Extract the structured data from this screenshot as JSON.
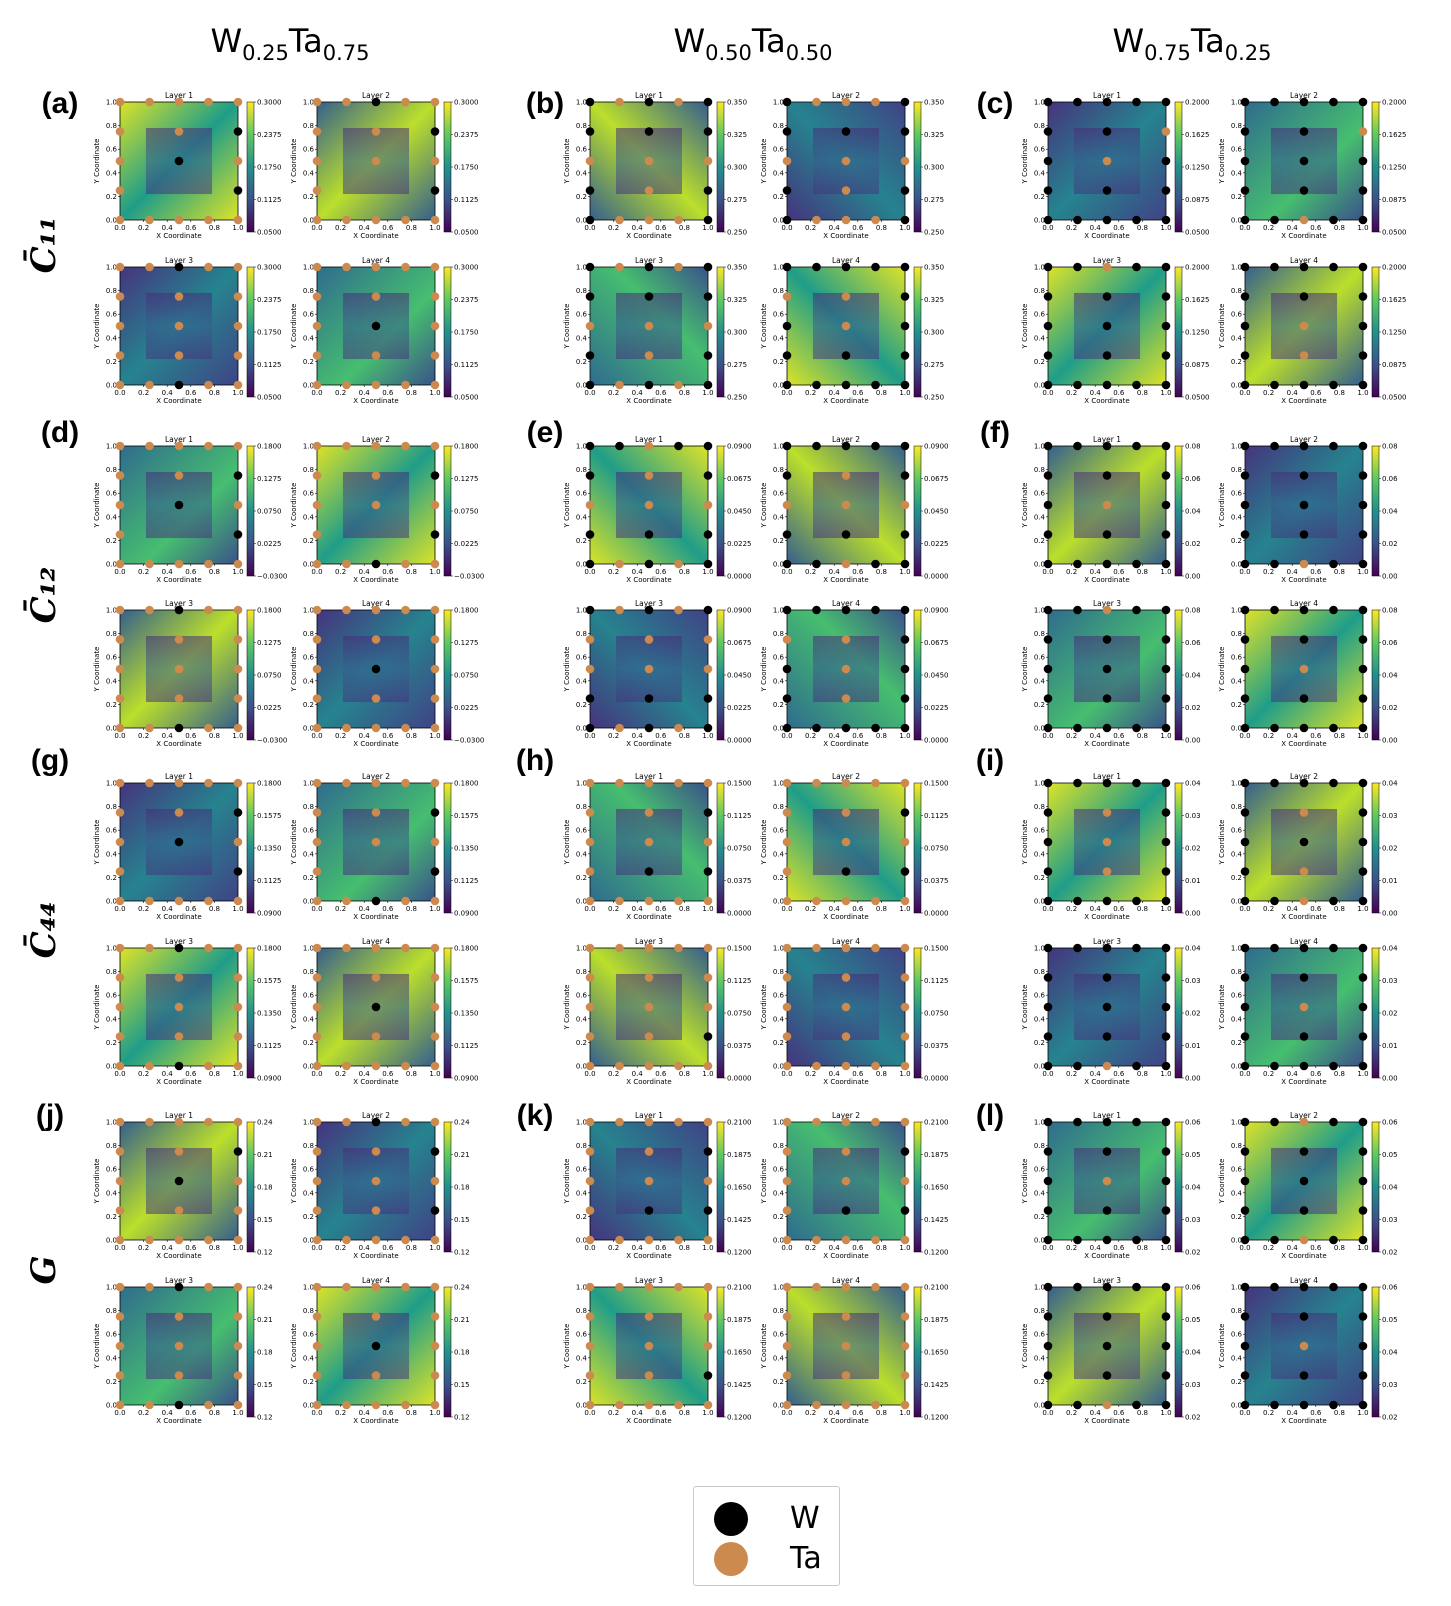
{
  "column_titles": [
    {
      "base1": "W",
      "sub1": "0.25",
      "base2": "Ta",
      "sub2": "0.75"
    },
    {
      "base1": "W",
      "sub1": "0.50",
      "base2": "Ta",
      "sub2": "0.50"
    },
    {
      "base1": "W",
      "sub1": "0.75",
      "base2": "Ta",
      "sub2": "0.25"
    }
  ],
  "row_labels": [
    "C̄₁₁",
    "C̄₁₂",
    "C̄₄₄",
    "G"
  ],
  "panel_labels": [
    "(a)",
    "(b)",
    "(c)",
    "(d)",
    "(e)",
    "(f)",
    "(g)",
    "(h)",
    "(i)",
    "(j)",
    "(k)",
    "(l)"
  ],
  "subplot_titles": [
    "Layer 1",
    "Layer 2",
    "Layer 3",
    "Layer 4"
  ],
  "axis_labels": {
    "x": "X Coordinate",
    "y": "Y Coordinate"
  },
  "axis_ticks": [
    "0.0",
    "0.2",
    "0.4",
    "0.6",
    "0.8",
    "1.0"
  ],
  "colors": {
    "W": "#000000",
    "Ta": "#cd8a4e",
    "colormap": "viridis"
  },
  "legend": [
    {
      "label": "W",
      "color": "#000000"
    },
    {
      "label": "Ta",
      "color": "#cd8a4e"
    }
  ],
  "chart_data": {
    "type": "heatmap",
    "colormap": "viridis",
    "x_range": [
      0,
      1
    ],
    "y_range": [
      0,
      1
    ],
    "site_grid": [
      0,
      0.25,
      0.5,
      0.75,
      1
    ],
    "colorbar_ticks": [
      [
        "0.0500",
        "0.1125",
        "0.1750",
        "0.2375",
        "0.3000"
      ],
      [
        "0.250",
        "0.275",
        "0.300",
        "0.325",
        "0.350"
      ],
      [
        "0.0500",
        "0.0875",
        "0.1250",
        "0.1625",
        "0.2000"
      ],
      [
        "−0.0300",
        "0.0225",
        "0.0750",
        "0.1275",
        "0.1800"
      ],
      [
        "0.0000",
        "0.0225",
        "0.0450",
        "0.0675",
        "0.0900"
      ],
      [
        "0.00",
        "0.02",
        "0.04",
        "0.06",
        "0.08"
      ],
      [
        "0.0900",
        "0.1125",
        "0.1350",
        "0.1575",
        "0.1800"
      ],
      [
        "0.0000",
        "0.0375",
        "0.0750",
        "0.1125",
        "0.1500"
      ],
      [
        "0.00",
        "0.01",
        "0.02",
        "0.03",
        "0.04"
      ],
      [
        "0.12",
        "0.15",
        "0.18",
        "0.21",
        "0.24"
      ],
      [
        "0.1200",
        "0.1425",
        "0.1650",
        "0.1875",
        "0.2100"
      ],
      [
        "0.02",
        "0.03",
        "0.04",
        "0.05",
        "0.06"
      ]
    ],
    "atom_grids": [
      [
        [
          "TTTTT",
          "T...W",
          "T.W.T",
          "T.T.W",
          "TTTTT"
        ],
        [
          "TTTTT",
          "T...W",
          "T.T.T",
          "T.T.W",
          "TTWTT"
        ],
        [
          "TTWTT",
          "T.T.T",
          "T.T.T",
          "T.T.T",
          "TTWTT"
        ],
        [
          "TTTTT",
          "T.T.T",
          "T.W.T",
          "T.T.T",
          "TTTTT"
        ]
      ],
      [
        [
          "WTTTW",
          "W.T.W",
          "T.T.T",
          "W.W.W",
          "WTWTW"
        ],
        [
          "WTTTW",
          "W.T.W",
          "T.T.T",
          "W.W.W",
          "WTTTW"
        ],
        [
          "WTWTW",
          "W.T.W",
          "T.T.T",
          "W.W.W",
          "WTWTW"
        ],
        [
          "WWWWW",
          "W.W.W",
          "W.T.W",
          "T.T.W",
          "WWWWW"
        ]
      ],
      [
        [
          "WWWWW",
          "W.W.W",
          "W.T.W",
          "W.W.T",
          "WWWWW"
        ],
        [
          "WWTWW",
          "W.W.W",
          "W.W.W",
          "W.W.T",
          "WWWWW"
        ],
        [
          "WWWWW",
          "W.W.W",
          "W.W.W",
          "W.W.W",
          "WWTWW"
        ],
        [
          "WWWWW",
          "W.T.W",
          "W.T.W",
          "W.W.W",
          "WWWWW"
        ]
      ],
      [
        [
          "TTTTT",
          "T...W",
          "T.W.T",
          "T.T.W",
          "TTTTT"
        ],
        [
          "TTWTT",
          "T...W",
          "T.T.T",
          "T.T.W",
          "TTTTT"
        ],
        [
          "TTWTT",
          "T.T.T",
          "T.T.T",
          "T.T.T",
          "TTWTT"
        ],
        [
          "TTTTT",
          "T.T.T",
          "T.W.T",
          "T.T.T",
          "TTTTT"
        ]
      ],
      [
        [
          "WTWTW",
          "W.W.W",
          "T.T.T",
          "W.T.W",
          "WWTWW"
        ],
        [
          "WWTWW",
          "W.W.W",
          "T.T.T",
          "W.T.W",
          "WWWWW"
        ],
        [
          "WTWTW",
          "W.W.W",
          "T.T.T",
          "T.T.T",
          "WTWTW"
        ],
        [
          "WWWWW",
          "W.T.W",
          "W.T.W",
          "T.T.W",
          "WWWWW"
        ]
      ],
      [
        [
          "WWWWW",
          "W.W.W",
          "W.T.W",
          "W.W.W",
          "WWWWW"
        ],
        [
          "WWTWW",
          "W.W.W",
          "W.W.W",
          "W.W.W",
          "WWWWW"
        ],
        [
          "WWWWW",
          "W.W.W",
          "W.W.W",
          "W.W.W",
          "WWTWW"
        ],
        [
          "WWWWW",
          "W.W.W",
          "W.T.W",
          "W.W.W",
          "WWWWW"
        ]
      ],
      [
        [
          "TTTTT",
          "T...W",
          "T.W.T",
          "T.T.W",
          "TTTTT"
        ],
        [
          "TTWTT",
          "T...W",
          "T.T.T",
          "T.T.W",
          "TTTTT"
        ],
        [
          "TTWTT",
          "T.T.T",
          "T.T.T",
          "T.T.T",
          "TTWTT"
        ],
        [
          "TTTTT",
          "T.T.T",
          "T.W.T",
          "T.T.T",
          "TTTTT"
        ]
      ],
      [
        [
          "TTTTT",
          "T.W.W",
          "T.T.T",
          "T.T.W",
          "TTTTT"
        ],
        [
          "TTTTT",
          "T.W.W",
          "T.T.T",
          "T.T.W",
          "TTTTT"
        ],
        [
          "TTTTT",
          "T.T.W",
          "T.T.T",
          "T.T.T",
          "TTTTT"
        ],
        [
          "TTTTT",
          "T.T.T",
          "T.T.T",
          "T.T.T",
          "TTTTT"
        ]
      ],
      [
        [
          "WWWWW",
          "W.T.W",
          "W.T.W",
          "W.T.W",
          "WWWWW"
        ],
        [
          "WWTWW",
          "W.T.W",
          "W.W.W",
          "W.T.W",
          "WWWWW"
        ],
        [
          "WWTWW",
          "W.W.W",
          "W.W.W",
          "W.W.W",
          "WWWWW"
        ],
        [
          "WWWWW",
          "W.W.W",
          "W.T.W",
          "W.W.W",
          "WWWWW"
        ]
      ],
      [
        [
          "TTTTT",
          "T.T.T",
          "T.W.T",
          "T.T.W",
          "TTTTT"
        ],
        [
          "TTTTT",
          "T.T.W",
          "T.T.T",
          "T.T.W",
          "TTWTT"
        ],
        [
          "TTWTT",
          "T.T.T",
          "T.T.T",
          "T.T.T",
          "TTWTT"
        ],
        [
          "TTTTT",
          "T.T.T",
          "T.W.T",
          "T.T.T",
          "TTTTT"
        ]
      ],
      [
        [
          "TTTTT",
          "T.W.W",
          "T.T.T",
          "T.T.W",
          "TTTTT"
        ],
        [
          "TTTTT",
          "T.W.W",
          "T.T.T",
          "T.T.W",
          "TTTTT"
        ],
        [
          "TTTTT",
          "T.T.W",
          "T.T.T",
          "T.T.T",
          "TTTTT"
        ],
        [
          "TTTTT",
          "T.T.T",
          "T.T.T",
          "T.T.T",
          "TTTTT"
        ]
      ],
      [
        [
          "WWWWW",
          "W.W.W",
          "W.T.W",
          "W.W.W",
          "WWWWW"
        ],
        [
          "WWTWW",
          "W.W.W",
          "W.W.W",
          "W.W.W",
          "WWTWW"
        ],
        [
          "WWTWW",
          "W.W.W",
          "W.W.W",
          "W.W.W",
          "WWWWW"
        ],
        [
          "WWWWW",
          "W.W.W",
          "W.T.W",
          "W.W.W",
          "WWWWW"
        ]
      ]
    ]
  }
}
